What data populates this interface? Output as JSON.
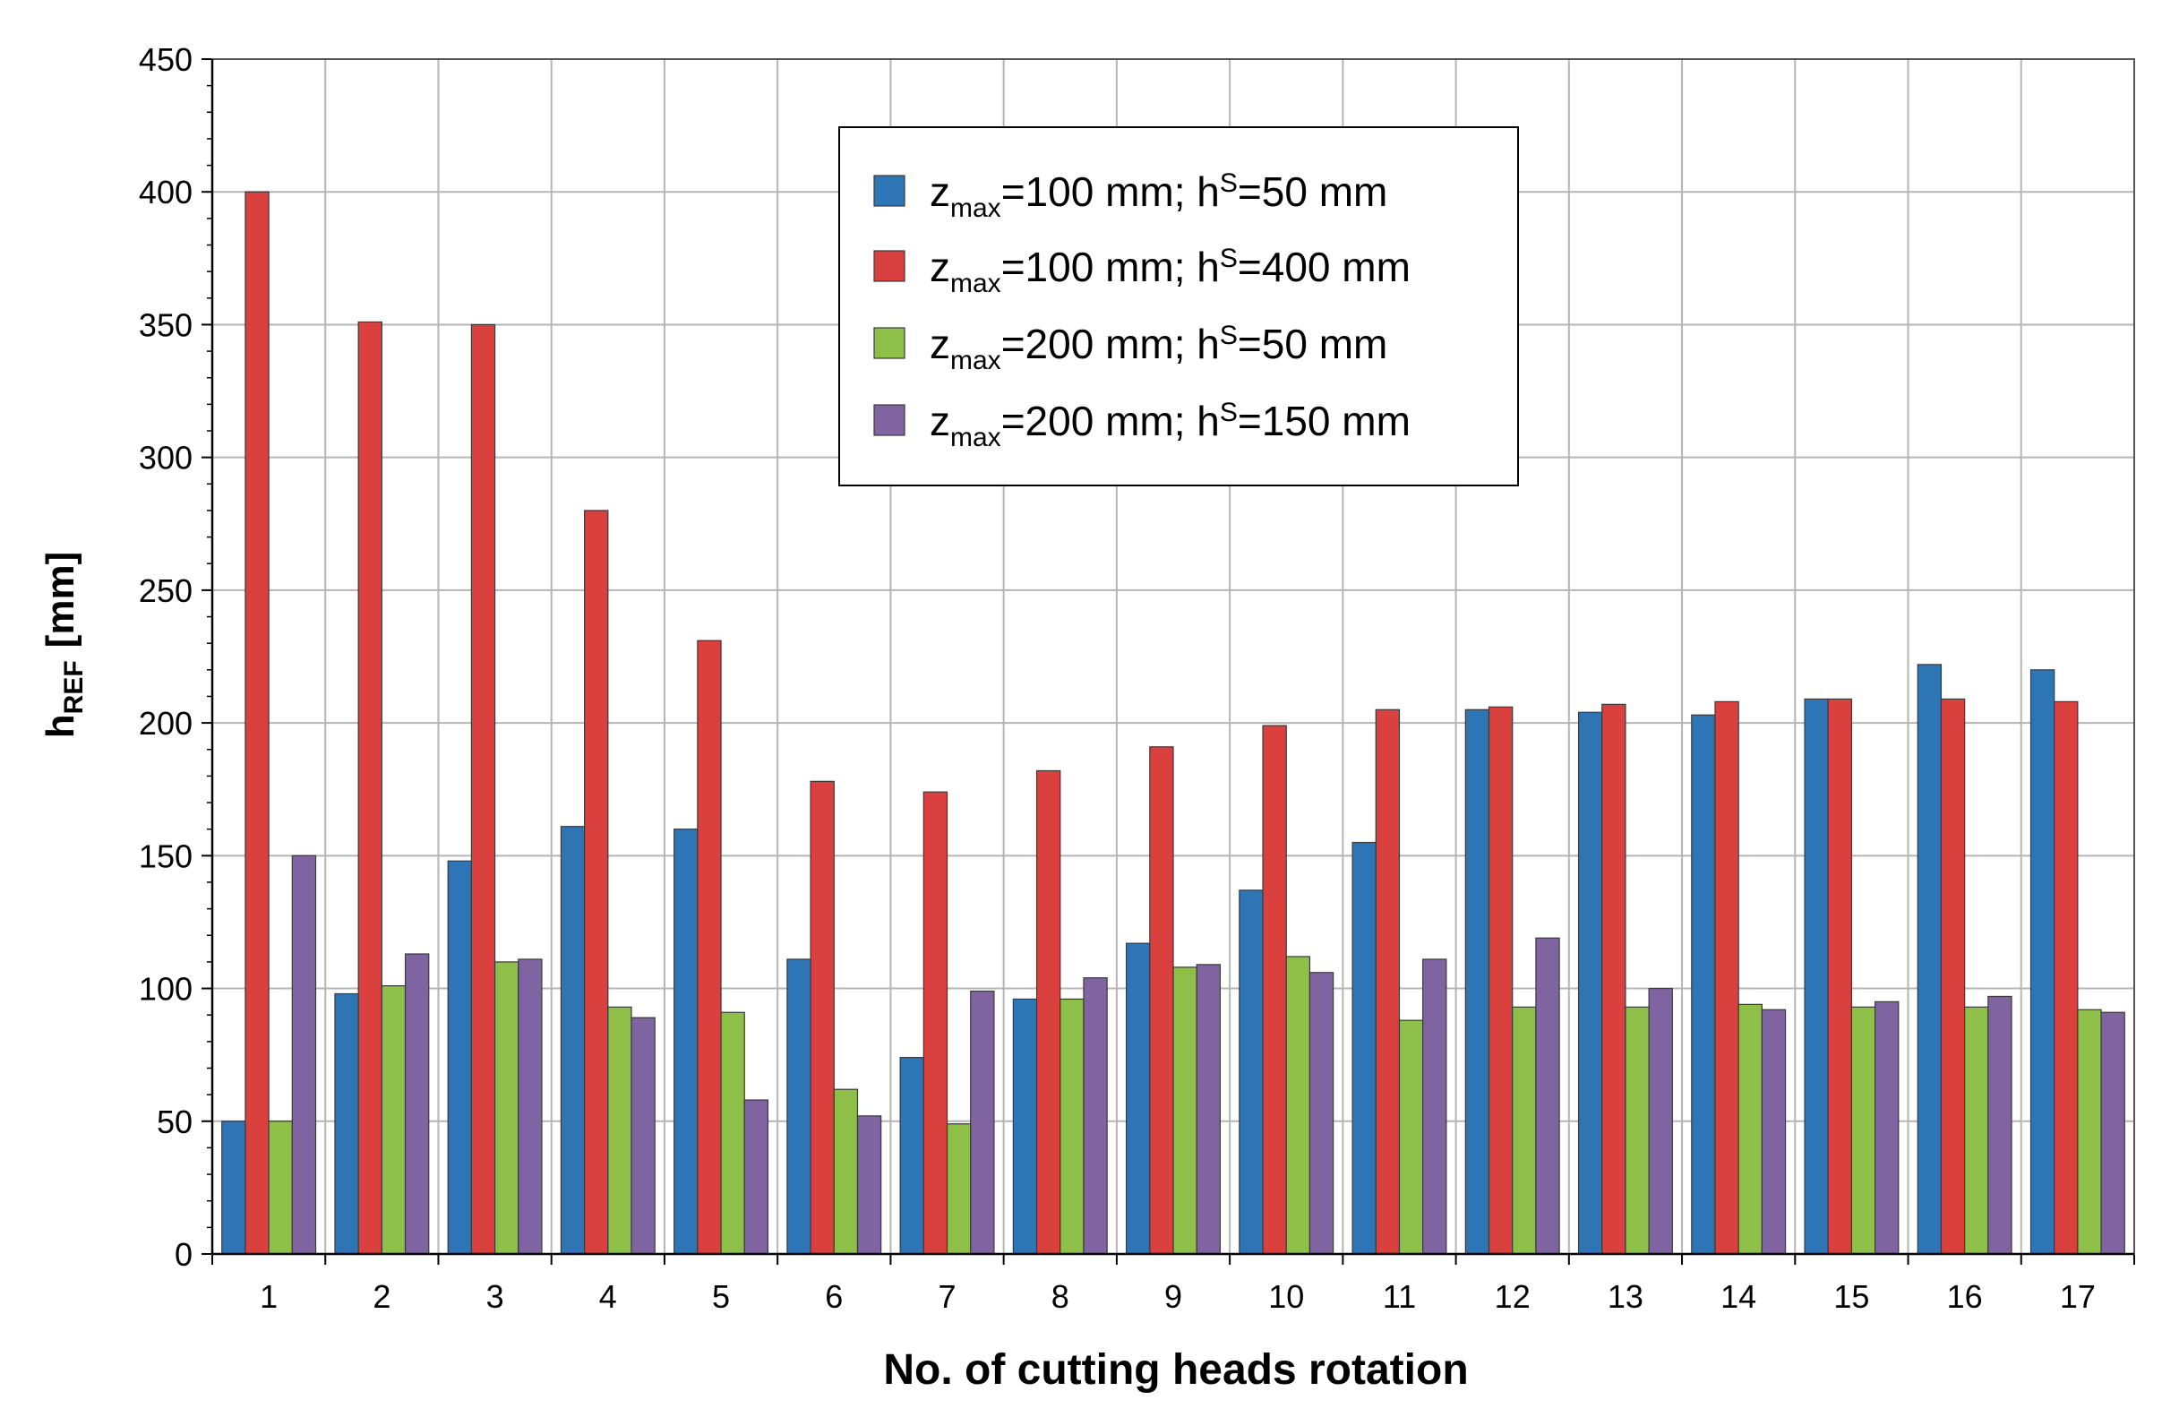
{
  "chart_data": {
    "type": "bar",
    "title": "",
    "xlabel": "No. of cutting heads rotation",
    "ylabel": {
      "base": "h",
      "sub": "REF",
      "unit": "[mm]"
    },
    "ylim": [
      0,
      450
    ],
    "ytick_step": 50,
    "grid": true,
    "legend_position": "top-center",
    "categories": [
      "1",
      "2",
      "3",
      "4",
      "5",
      "6",
      "7",
      "8",
      "9",
      "10",
      "11",
      "12",
      "13",
      "14",
      "15",
      "16",
      "17"
    ],
    "series": [
      {
        "name": "zmax=100 mm; hS=50 mm",
        "legend": {
          "z": "z",
          "sub": "max",
          "mid": "=100 mm; h",
          "sup": "S",
          "tail": "=50 mm"
        },
        "color": "#2e75b6",
        "values": [
          50,
          98,
          148,
          161,
          160,
          111,
          74,
          96,
          117,
          137,
          155,
          205,
          204,
          203,
          209,
          222,
          220
        ]
      },
      {
        "name": "zmax=100 mm; hS=400 mm",
        "legend": {
          "z": "z",
          "sub": "max",
          "mid": "=100 mm; h",
          "sup": "S",
          "tail": "=400 mm"
        },
        "color": "#d9403e",
        "values": [
          400,
          351,
          350,
          280,
          231,
          178,
          174,
          182,
          191,
          199,
          205,
          206,
          207,
          208,
          209,
          209,
          208
        ]
      },
      {
        "name": "zmax=200 mm; hS=50 mm",
        "legend": {
          "z": "z",
          "sub": "max",
          "mid": "=200 mm; h",
          "sup": "S",
          "tail": "=50 mm"
        },
        "color": "#8ebf48",
        "values": [
          50,
          101,
          110,
          93,
          91,
          62,
          49,
          96,
          108,
          112,
          88,
          93,
          93,
          94,
          93,
          93,
          92
        ]
      },
      {
        "name": "zmax=200 mm; hS=150 mm",
        "legend": {
          "z": "z",
          "sub": "max",
          "mid": "=200 mm; h",
          "sup": "S",
          "tail": "=150 mm"
        },
        "color": "#8064a2",
        "values": [
          150,
          113,
          111,
          89,
          58,
          52,
          99,
          104,
          109,
          106,
          111,
          119,
          100,
          92,
          95,
          97,
          91
        ]
      }
    ]
  }
}
